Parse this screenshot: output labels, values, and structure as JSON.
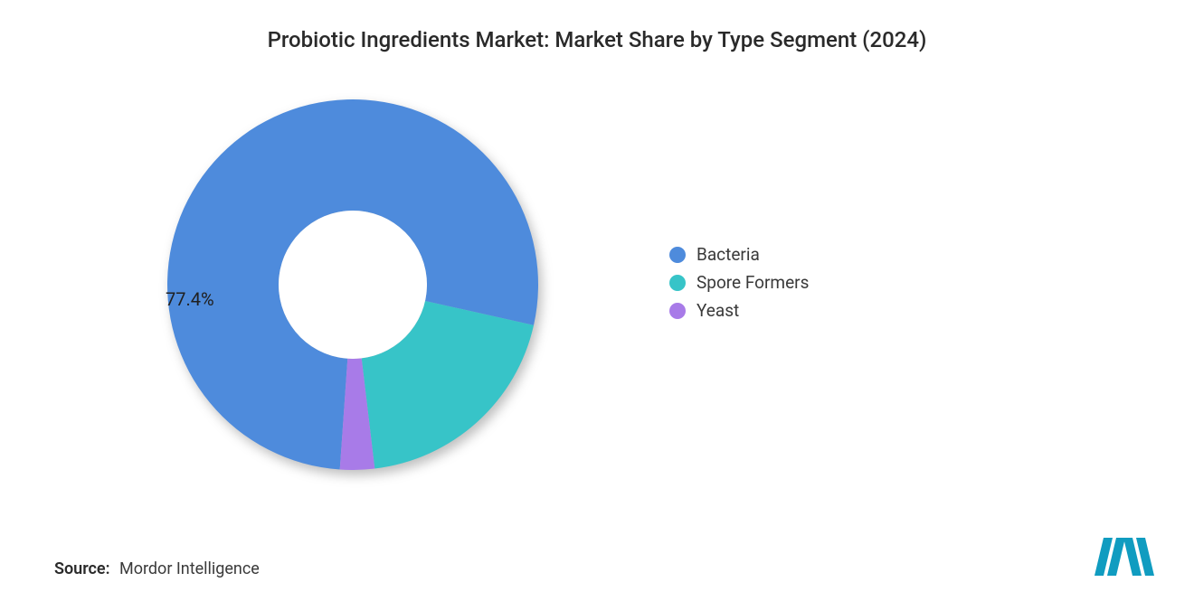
{
  "title": "Probiotic Ingredients Market: Market Share by Type Segment (2024)",
  "chart": {
    "type": "donut",
    "inner_radius_ratio": 0.4,
    "background_color": "#ffffff",
    "slices": [
      {
        "label": "Bacteria",
        "value": 77.4,
        "color": "#4e8bdc",
        "show_pct": true,
        "pct_text": "77.4%"
      },
      {
        "label": "Spore Formers",
        "value": 19.6,
        "color": "#37c4c8",
        "show_pct": false,
        "pct_text": "19.6%"
      },
      {
        "label": "Yeast",
        "value": 3.0,
        "color": "#a87be8",
        "show_pct": false,
        "pct_text": "3.0%"
      }
    ],
    "start_angle_deg": 94,
    "direction": "clockwise",
    "pct_label_fontsize": 20,
    "pct_label_color": "#202020"
  },
  "legend": {
    "items": [
      {
        "label": "Bacteria",
        "color": "#4e8bdc"
      },
      {
        "label": "Spore Formers",
        "color": "#37c4c8"
      },
      {
        "label": "Yeast",
        "color": "#a87be8"
      }
    ],
    "fontsize": 19,
    "text_color": "#3a3a3a",
    "swatch_shape": "circle",
    "swatch_size": 18
  },
  "source": {
    "prefix": "Source:",
    "text": "Mordor Intelligence"
  },
  "logo": {
    "name": "mordor-intelligence-logo",
    "bar_color": "#109cc0",
    "text": "MI"
  }
}
